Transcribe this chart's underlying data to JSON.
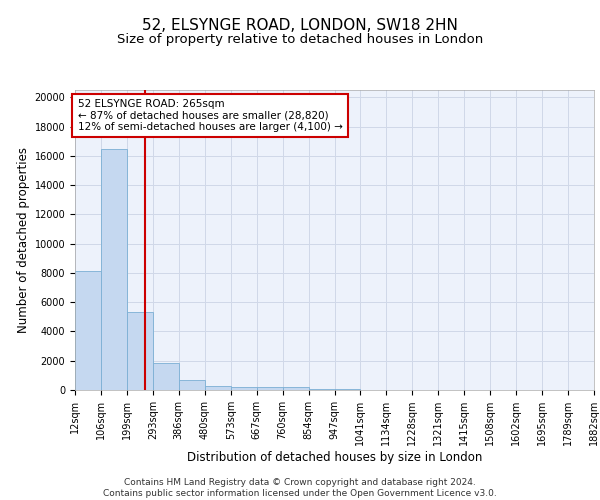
{
  "title1": "52, ELSYNGE ROAD, LONDON, SW18 2HN",
  "title2": "Size of property relative to detached houses in London",
  "xlabel": "Distribution of detached houses by size in London",
  "ylabel": "Number of detached properties",
  "bin_labels": [
    "12sqm",
    "106sqm",
    "199sqm",
    "293sqm",
    "386sqm",
    "480sqm",
    "573sqm",
    "667sqm",
    "760sqm",
    "854sqm",
    "947sqm",
    "1041sqm",
    "1134sqm",
    "1228sqm",
    "1321sqm",
    "1415sqm",
    "1508sqm",
    "1602sqm",
    "1695sqm",
    "1789sqm",
    "1882sqm"
  ],
  "bar_values": [
    8100,
    16500,
    5300,
    1850,
    700,
    300,
    230,
    200,
    180,
    100,
    50,
    30,
    20,
    15,
    10,
    8,
    6,
    5,
    4,
    3
  ],
  "bar_color": "#c5d8f0",
  "bar_edge_color": "#7bafd4",
  "grid_color": "#d0d8e8",
  "background_color": "#edf2fb",
  "red_line_color": "#cc0000",
  "annotation_text": "52 ELSYNGE ROAD: 265sqm\n← 87% of detached houses are smaller (28,820)\n12% of semi-detached houses are larger (4,100) →",
  "annotation_box_color": "#ffffff",
  "annotation_box_edge": "#cc0000",
  "ylim": [
    0,
    20500
  ],
  "yticks": [
    0,
    2000,
    4000,
    6000,
    8000,
    10000,
    12000,
    14000,
    16000,
    18000,
    20000
  ],
  "footer_text": "Contains HM Land Registry data © Crown copyright and database right 2024.\nContains public sector information licensed under the Open Government Licence v3.0.",
  "title1_fontsize": 11,
  "title2_fontsize": 9.5,
  "xlabel_fontsize": 8.5,
  "ylabel_fontsize": 8.5,
  "tick_fontsize": 7,
  "annotation_fontsize": 7.5,
  "footer_fontsize": 6.5
}
